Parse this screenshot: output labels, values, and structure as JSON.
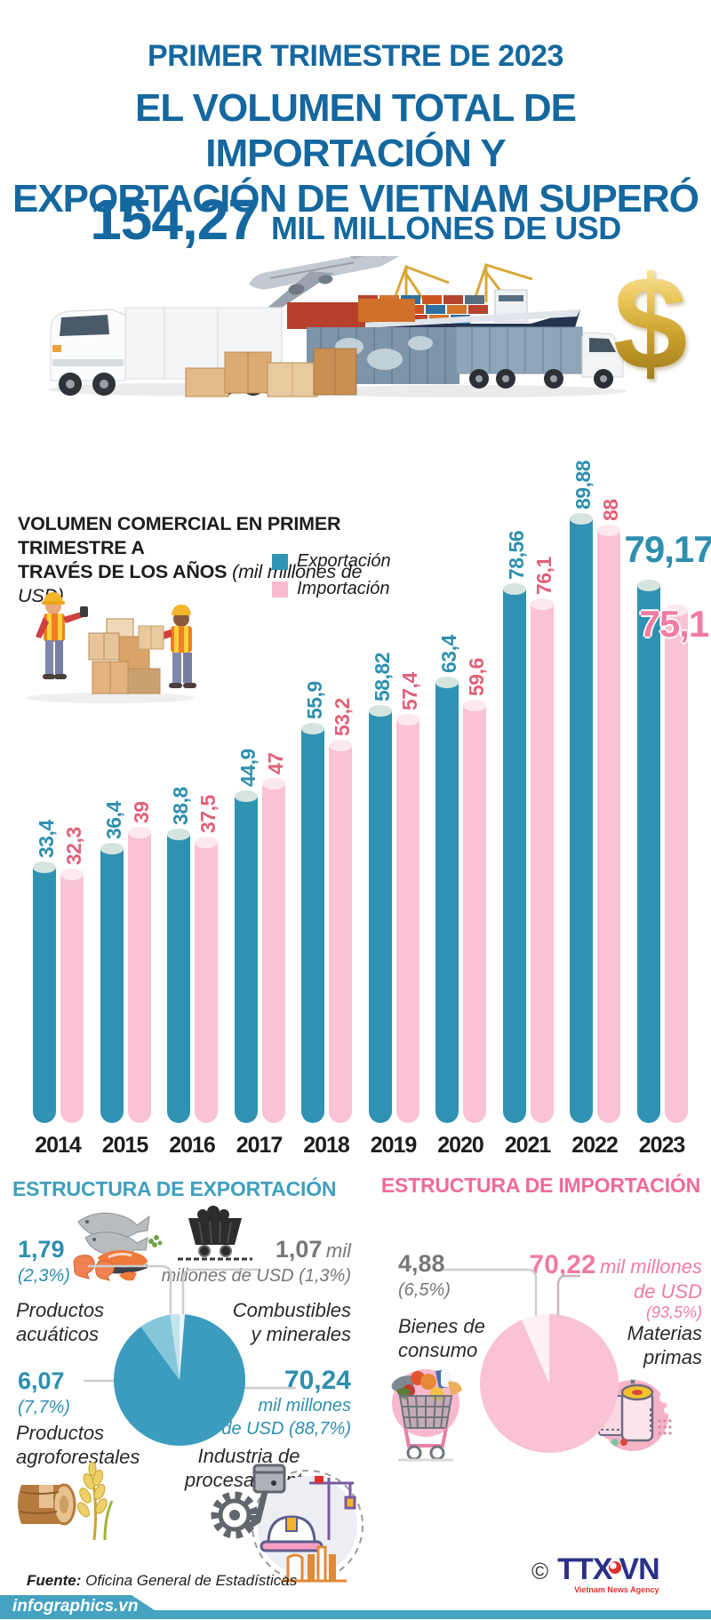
{
  "header": {
    "kicker": "PRIMER TRIMESTRE DE 2023",
    "title_line1": "EL VOLUMEN TOTAL DE IMPORTACIÓN Y",
    "title_line2": "EXPORTACIÓN DE VIETNAM SUPERÓ",
    "amount": "154,27",
    "amount_unit": "MIL MILLONES DE USD"
  },
  "colors": {
    "title_blue": "#15689f",
    "bar_teal": "#3092b2",
    "bar_pink": "#f9c3d4",
    "label_teal": "#2e8fae",
    "label_pink": "#e0607a",
    "export_header_teal": "#3f9fbe",
    "import_header_pink": "#f06a9a",
    "footer_teal": "#45a3c1"
  },
  "chart_data": [
    {
      "type": "bar",
      "title_line1": "VOLUMEN COMERCIAL EN PRIMER TRIMESTRE A",
      "title_line2": "TRAVÉS DE LOS AÑOS",
      "unit_note": "(mil millones de USD)",
      "categories": [
        "2014",
        "2015",
        "2016",
        "2017",
        "2018",
        "2019",
        "2020",
        "2021",
        "2022",
        "2023"
      ],
      "series": [
        {
          "name": "Exportación",
          "color": "#3092b2",
          "values": [
            33.4,
            36.4,
            38.8,
            44.9,
            55.9,
            58.82,
            63.4,
            78.56,
            89.88,
            79.17
          ],
          "labels": [
            "33,4",
            "36,4",
            "38,8",
            "44,9",
            "55,9",
            "58,82",
            "63,4",
            "78,56",
            "89,88",
            "79,17"
          ]
        },
        {
          "name": "Importación",
          "color": "#f9c3d4",
          "values": [
            32.3,
            39,
            37.5,
            47,
            53.2,
            57.4,
            59.6,
            76.1,
            88,
            75.1
          ],
          "labels": [
            "32,3",
            "39",
            "37,5",
            "47",
            "53,2",
            "57,4",
            "59,6",
            "76,1",
            "88",
            "75,1"
          ]
        }
      ],
      "ylim": [
        0,
        90
      ],
      "grid": false,
      "legend_position": "top-right"
    },
    {
      "type": "pie",
      "title": "ESTRUCTURA DE EXPORTACIÓN",
      "slices": [
        {
          "label": "Combustibles y minerales",
          "pct": 1.3,
          "color": "#ecf6fa"
        },
        {
          "label": "Industria de procesamiento",
          "pct": 88.7,
          "color": "#3b9cbe"
        },
        {
          "label": "Productos agroforestales",
          "pct": 7.7,
          "color": "#85c6da"
        },
        {
          "label": "Productos acuáticos",
          "pct": 2.3,
          "color": "#c3e3ee"
        }
      ]
    },
    {
      "type": "pie",
      "title": "ESTRUCTURA DE IMPORTACIÓN",
      "slices": [
        {
          "label": "Materias primas",
          "pct": 93.5,
          "color": "#f9c3d4"
        },
        {
          "label": "Bienes de consumo",
          "pct": 6.5,
          "color": "#fdf1f5"
        }
      ]
    }
  ],
  "export_section": {
    "heading": "ESTRUCTURA DE EXPORTACIÓN",
    "acuaticos": {
      "num": "1,79",
      "pct": "(2,3%)",
      "name1": "Productos",
      "name2": "acuáticos"
    },
    "combustibles": {
      "num": "1,07",
      "unit": "mil",
      "line2": "millones de USD (1,3%)",
      "name1": "Combustibles",
      "name2": "y minerales"
    },
    "agroforestales": {
      "num": "6,07",
      "pct": "(7,7%)",
      "name1": "Productos",
      "name2": "agroforestales"
    },
    "procesamiento": {
      "num": "70,24",
      "line2": "mil millones",
      "line3": "de USD (88,7%)",
      "name": "Industria de procesamiento"
    }
  },
  "import_section": {
    "heading": "ESTRUCTURA DE IMPORTACIÓN",
    "consumo": {
      "num": "4,88",
      "pct": "(6,5%)",
      "name1": "Bienes de",
      "name2": "consumo"
    },
    "primas": {
      "num": "70,22",
      "unit": "mil millones",
      "line2": "de USD",
      "pct": "(93,5%)",
      "name1": "Materias",
      "name2": "primas"
    }
  },
  "footer": {
    "source_label": "Fuente:",
    "source": "Oficina General de Estadísticas",
    "site": "infographics.vn",
    "copyright": "©",
    "agency": "TTXVN",
    "agency_sub": "Vietnam News Agency"
  }
}
